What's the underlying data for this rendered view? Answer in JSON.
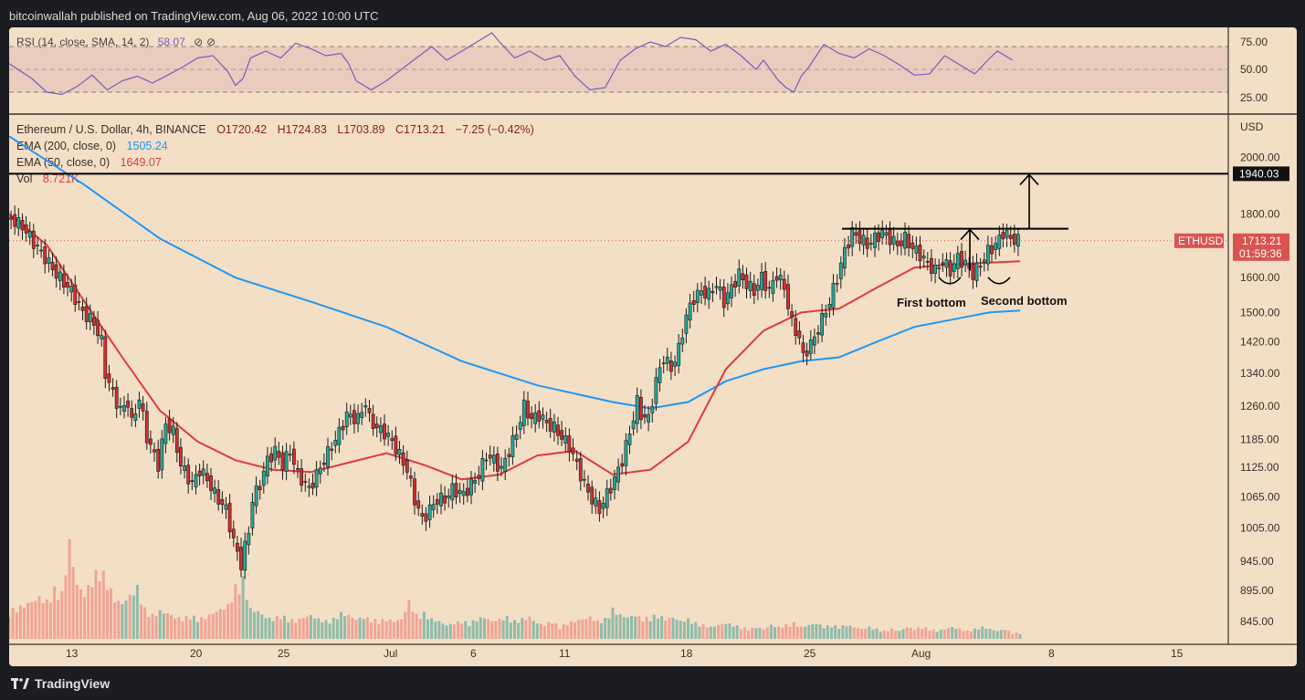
{
  "header": {
    "publisher_line": "bitcoinwallah published on TradingView.com, Aug 06, 2022 10:00 UTC"
  },
  "footer": {
    "brand": "TradingView"
  },
  "chart_data": {
    "type": "candlestick",
    "symbol_line": {
      "title": "Ethereum / U.S. Dollar, 4h, BINANCE",
      "open": "O1720.42",
      "high": "H1724.83",
      "low": "L1703.89",
      "close": "C1713.21",
      "change": "−7.25 (−0.42%)"
    },
    "indicators": {
      "ema200_label": "EMA (200, close, 0)",
      "ema200_value": "1505.24",
      "ema50_label": "EMA (50, close, 0)",
      "ema50_value": "1649.07",
      "vol_label": "Vol",
      "vol_value": "8.721K"
    },
    "rsi": {
      "label": "RSI (14, close, SMA, 14, 2)",
      "value": "58.07",
      "ticks": [
        "75.00",
        "50.00",
        "25.00"
      ],
      "levels": [
        70,
        50,
        30
      ]
    },
    "price_axis": {
      "unit_label": "USD",
      "ticks": [
        "2000.00",
        "1800.00",
        "1600.00",
        "1500.00",
        "1420.00",
        "1340.00",
        "1260.00",
        "1185.00",
        "1125.00",
        "1065.00",
        "1005.00",
        "945.00",
        "895.00",
        "845.00"
      ],
      "scale": "log",
      "range": [
        810,
        2160
      ]
    },
    "time_axis": {
      "ticks": [
        "13",
        "20",
        "25",
        "Jul",
        "6",
        "11",
        "18",
        "25",
        "Aug",
        "8",
        "15"
      ]
    },
    "resistance_label": "1940.03",
    "resistance_value": 1940.03,
    "neckline_value": 1752,
    "current_price_badge": {
      "symbol": "ETHUSD",
      "price": "1713.21",
      "countdown": "01:59:36"
    },
    "current_price": 1713.21,
    "annotations": {
      "first_bottom": "First bottom",
      "second_bottom": "Second bottom"
    },
    "price_path": [
      [
        0,
        1790
      ],
      [
        4,
        1760
      ],
      [
        8,
        1690
      ],
      [
        10,
        1660
      ],
      [
        13,
        1610
      ],
      [
        17,
        1560
      ],
      [
        20,
        1500
      ],
      [
        23,
        1470
      ],
      [
        25,
        1420
      ],
      [
        26,
        1340
      ],
      [
        28,
        1290
      ],
      [
        30,
        1250
      ],
      [
        32,
        1270
      ],
      [
        33,
        1220
      ],
      [
        35,
        1280
      ],
      [
        37,
        1190
      ],
      [
        40,
        1130
      ],
      [
        42,
        1220
      ],
      [
        44,
        1200
      ],
      [
        46,
        1130
      ],
      [
        49,
        1090
      ],
      [
        51,
        1120
      ],
      [
        53,
        1100
      ],
      [
        55,
        1070
      ],
      [
        58,
        1040
      ],
      [
        60,
        980
      ],
      [
        62,
        940
      ],
      [
        64,
        1000
      ],
      [
        65,
        1060
      ],
      [
        67,
        1090
      ],
      [
        69,
        1140
      ],
      [
        71,
        1160
      ],
      [
        73,
        1130
      ],
      [
        75,
        1160
      ],
      [
        77,
        1110
      ],
      [
        80,
        1080
      ],
      [
        82,
        1110
      ],
      [
        84,
        1140
      ],
      [
        86,
        1170
      ],
      [
        88,
        1200
      ],
      [
        90,
        1240
      ],
      [
        93,
        1230
      ],
      [
        95,
        1270
      ],
      [
        96,
        1230
      ],
      [
        98,
        1210
      ],
      [
        100,
        1200
      ],
      [
        102,
        1180
      ],
      [
        104,
        1150
      ],
      [
        106,
        1120
      ],
      [
        108,
        1060
      ],
      [
        110,
        1020
      ],
      [
        112,
        1040
      ],
      [
        114,
        1060
      ],
      [
        116,
        1060
      ],
      [
        118,
        1080
      ],
      [
        121,
        1070
      ],
      [
        123,
        1090
      ],
      [
        125,
        1110
      ],
      [
        127,
        1150
      ],
      [
        129,
        1140
      ],
      [
        131,
        1120
      ],
      [
        133,
        1160
      ],
      [
        135,
        1200
      ],
      [
        137,
        1260
      ],
      [
        139,
        1230
      ],
      [
        141,
        1240
      ],
      [
        143,
        1220
      ],
      [
        145,
        1210
      ],
      [
        147,
        1190
      ],
      [
        149,
        1170
      ],
      [
        151,
        1130
      ],
      [
        153,
        1090
      ],
      [
        155,
        1060
      ],
      [
        157,
        1040
      ],
      [
        159,
        1070
      ],
      [
        161,
        1100
      ],
      [
        163,
        1140
      ],
      [
        165,
        1200
      ],
      [
        167,
        1270
      ],
      [
        168,
        1240
      ],
      [
        170,
        1230
      ],
      [
        172,
        1320
      ],
      [
        174,
        1380
      ],
      [
        176,
        1350
      ],
      [
        178,
        1400
      ],
      [
        180,
        1490
      ],
      [
        182,
        1540
      ],
      [
        184,
        1560
      ],
      [
        186,
        1550
      ],
      [
        188,
        1580
      ],
      [
        190,
        1530
      ],
      [
        192,
        1570
      ],
      [
        194,
        1610
      ],
      [
        196,
        1580
      ],
      [
        198,
        1560
      ],
      [
        200,
        1600
      ],
      [
        202,
        1560
      ],
      [
        204,
        1610
      ],
      [
        206,
        1570
      ],
      [
        207,
        1520
      ],
      [
        208,
        1470
      ],
      [
        210,
        1430
      ],
      [
        211,
        1380
      ],
      [
        212,
        1400
      ],
      [
        214,
        1430
      ],
      [
        216,
        1480
      ],
      [
        218,
        1530
      ],
      [
        220,
        1600
      ],
      [
        222,
        1680
      ],
      [
        224,
        1740
      ],
      [
        226,
        1720
      ],
      [
        228,
        1700
      ],
      [
        230,
        1720
      ],
      [
        232,
        1740
      ],
      [
        234,
        1720
      ],
      [
        236,
        1700
      ],
      [
        238,
        1720
      ],
      [
        240,
        1690
      ],
      [
        242,
        1670
      ],
      [
        244,
        1640
      ],
      [
        246,
        1620
      ],
      [
        248,
        1650
      ],
      [
        250,
        1620
      ],
      [
        252,
        1660
      ],
      [
        254,
        1640
      ],
      [
        256,
        1610
      ],
      [
        258,
        1640
      ],
      [
        260,
        1680
      ],
      [
        262,
        1700
      ],
      [
        264,
        1740
      ],
      [
        266,
        1720
      ],
      [
        268,
        1713
      ]
    ],
    "ema50_path": [
      [
        0,
        1800
      ],
      [
        10,
        1700
      ],
      [
        20,
        1530
      ],
      [
        30,
        1380
      ],
      [
        40,
        1250
      ],
      [
        50,
        1180
      ],
      [
        60,
        1140
      ],
      [
        70,
        1120
      ],
      [
        80,
        1115
      ],
      [
        90,
        1135
      ],
      [
        100,
        1155
      ],
      [
        110,
        1130
      ],
      [
        120,
        1100
      ],
      [
        130,
        1110
      ],
      [
        140,
        1150
      ],
      [
        150,
        1160
      ],
      [
        160,
        1110
      ],
      [
        170,
        1120
      ],
      [
        180,
        1180
      ],
      [
        190,
        1350
      ],
      [
        200,
        1450
      ],
      [
        210,
        1500
      ],
      [
        220,
        1510
      ],
      [
        230,
        1570
      ],
      [
        240,
        1630
      ],
      [
        250,
        1640
      ],
      [
        260,
        1645
      ],
      [
        268,
        1649
      ]
    ],
    "ema200_path": [
      [
        0,
        2080
      ],
      [
        20,
        1900
      ],
      [
        40,
        1720
      ],
      [
        60,
        1600
      ],
      [
        80,
        1530
      ],
      [
        100,
        1460
      ],
      [
        120,
        1370
      ],
      [
        140,
        1310
      ],
      [
        160,
        1270
      ],
      [
        170,
        1255
      ],
      [
        180,
        1270
      ],
      [
        190,
        1320
      ],
      [
        200,
        1350
      ],
      [
        210,
        1370
      ],
      [
        220,
        1380
      ],
      [
        230,
        1420
      ],
      [
        240,
        1460
      ],
      [
        250,
        1480
      ],
      [
        260,
        1500
      ],
      [
        268,
        1505
      ]
    ],
    "rsi_path": [
      [
        0,
        55
      ],
      [
        6,
        42
      ],
      [
        10,
        30
      ],
      [
        14,
        28
      ],
      [
        18,
        35
      ],
      [
        22,
        45
      ],
      [
        26,
        32
      ],
      [
        30,
        40
      ],
      [
        34,
        44
      ],
      [
        38,
        38
      ],
      [
        42,
        45
      ],
      [
        46,
        52
      ],
      [
        50,
        60
      ],
      [
        54,
        62
      ],
      [
        58,
        48
      ],
      [
        60,
        36
      ],
      [
        62,
        42
      ],
      [
        64,
        60
      ],
      [
        68,
        66
      ],
      [
        72,
        60
      ],
      [
        76,
        73
      ],
      [
        80,
        68
      ],
      [
        84,
        62
      ],
      [
        88,
        64
      ],
      [
        90,
        55
      ],
      [
        92,
        40
      ],
      [
        96,
        32
      ],
      [
        100,
        40
      ],
      [
        104,
        50
      ],
      [
        108,
        60
      ],
      [
        112,
        70
      ],
      [
        116,
        58
      ],
      [
        120,
        66
      ],
      [
        124,
        74
      ],
      [
        128,
        82
      ],
      [
        130,
        74
      ],
      [
        134,
        60
      ],
      [
        138,
        66
      ],
      [
        142,
        58
      ],
      [
        146,
        62
      ],
      [
        150,
        44
      ],
      [
        154,
        32
      ],
      [
        158,
        34
      ],
      [
        162,
        58
      ],
      [
        166,
        68
      ],
      [
        170,
        74
      ],
      [
        174,
        70
      ],
      [
        178,
        78
      ],
      [
        182,
        76
      ],
      [
        186,
        66
      ],
      [
        190,
        72
      ],
      [
        194,
        62
      ],
      [
        198,
        50
      ],
      [
        200,
        58
      ],
      [
        204,
        40
      ],
      [
        206,
        34
      ],
      [
        208,
        30
      ],
      [
        210,
        44
      ],
      [
        212,
        52
      ],
      [
        216,
        72
      ],
      [
        220,
        64
      ],
      [
        224,
        60
      ],
      [
        228,
        68
      ],
      [
        232,
        62
      ],
      [
        236,
        54
      ],
      [
        240,
        45
      ],
      [
        244,
        46
      ],
      [
        248,
        62
      ],
      [
        252,
        54
      ],
      [
        256,
        46
      ],
      [
        260,
        60
      ],
      [
        262,
        66
      ],
      [
        266,
        58
      ]
    ],
    "volume_path": [
      [
        0,
        0.28
      ],
      [
        4,
        0.34
      ],
      [
        8,
        0.42
      ],
      [
        10,
        0.38
      ],
      [
        12,
        0.5
      ],
      [
        14,
        0.46
      ],
      [
        16,
        0.98
      ],
      [
        18,
        0.55
      ],
      [
        20,
        0.45
      ],
      [
        22,
        0.6
      ],
      [
        24,
        0.72
      ],
      [
        26,
        0.58
      ],
      [
        28,
        0.4
      ],
      [
        30,
        0.36
      ],
      [
        32,
        0.44
      ],
      [
        34,
        0.52
      ],
      [
        36,
        0.3
      ],
      [
        38,
        0.24
      ],
      [
        40,
        0.28
      ],
      [
        42,
        0.26
      ],
      [
        44,
        0.22
      ],
      [
        46,
        0.2
      ],
      [
        48,
        0.24
      ],
      [
        50,
        0.2
      ],
      [
        52,
        0.22
      ],
      [
        54,
        0.26
      ],
      [
        56,
        0.3
      ],
      [
        58,
        0.34
      ],
      [
        60,
        0.52
      ],
      [
        62,
        0.6
      ],
      [
        64,
        0.3
      ],
      [
        66,
        0.28
      ],
      [
        68,
        0.22
      ],
      [
        70,
        0.2
      ],
      [
        72,
        0.24
      ],
      [
        74,
        0.2
      ],
      [
        76,
        0.18
      ],
      [
        78,
        0.22
      ],
      [
        80,
        0.24
      ],
      [
        82,
        0.2
      ],
      [
        84,
        0.18
      ],
      [
        86,
        0.2
      ],
      [
        88,
        0.26
      ],
      [
        90,
        0.24
      ],
      [
        92,
        0.2
      ],
      [
        94,
        0.22
      ],
      [
        96,
        0.2
      ],
      [
        98,
        0.18
      ],
      [
        100,
        0.2
      ],
      [
        102,
        0.18
      ],
      [
        104,
        0.2
      ],
      [
        106,
        0.38
      ],
      [
        108,
        0.24
      ],
      [
        110,
        0.26
      ],
      [
        112,
        0.2
      ],
      [
        114,
        0.18
      ],
      [
        116,
        0.14
      ],
      [
        118,
        0.16
      ],
      [
        120,
        0.18
      ],
      [
        122,
        0.16
      ],
      [
        124,
        0.2
      ],
      [
        126,
        0.22
      ],
      [
        128,
        0.18
      ],
      [
        130,
        0.2
      ],
      [
        132,
        0.22
      ],
      [
        134,
        0.18
      ],
      [
        136,
        0.2
      ],
      [
        138,
        0.22
      ],
      [
        140,
        0.16
      ],
      [
        142,
        0.14
      ],
      [
        144,
        0.18
      ],
      [
        146,
        0.12
      ],
      [
        148,
        0.16
      ],
      [
        150,
        0.18
      ],
      [
        152,
        0.2
      ],
      [
        154,
        0.22
      ],
      [
        156,
        0.18
      ],
      [
        158,
        0.2
      ],
      [
        160,
        0.3
      ],
      [
        162,
        0.24
      ],
      [
        164,
        0.22
      ],
      [
        166,
        0.24
      ],
      [
        168,
        0.2
      ],
      [
        170,
        0.22
      ],
      [
        172,
        0.24
      ],
      [
        174,
        0.2
      ],
      [
        176,
        0.22
      ],
      [
        178,
        0.18
      ],
      [
        180,
        0.2
      ],
      [
        182,
        0.16
      ],
      [
        184,
        0.14
      ],
      [
        186,
        0.12
      ],
      [
        188,
        0.14
      ],
      [
        190,
        0.16
      ],
      [
        192,
        0.14
      ],
      [
        194,
        0.12
      ],
      [
        196,
        0.1
      ],
      [
        198,
        0.12
      ],
      [
        200,
        0.1
      ],
      [
        202,
        0.14
      ],
      [
        204,
        0.12
      ],
      [
        206,
        0.14
      ],
      [
        208,
        0.16
      ],
      [
        210,
        0.12
      ],
      [
        212,
        0.14
      ],
      [
        214,
        0.16
      ],
      [
        216,
        0.12
      ],
      [
        218,
        0.14
      ],
      [
        220,
        0.12
      ],
      [
        222,
        0.14
      ],
      [
        224,
        0.12
      ],
      [
        226,
        0.1
      ],
      [
        228,
        0.12
      ],
      [
        230,
        0.1
      ],
      [
        232,
        0.08
      ],
      [
        234,
        0.1
      ],
      [
        236,
        0.08
      ],
      [
        238,
        0.12
      ],
      [
        240,
        0.1
      ],
      [
        242,
        0.12
      ],
      [
        244,
        0.1
      ],
      [
        246,
        0.08
      ],
      [
        248,
        0.1
      ],
      [
        250,
        0.12
      ],
      [
        252,
        0.1
      ],
      [
        254,
        0.08
      ],
      [
        256,
        0.1
      ],
      [
        258,
        0.12
      ],
      [
        260,
        0.1
      ],
      [
        262,
        0.08
      ],
      [
        264,
        0.1
      ],
      [
        266,
        0.06
      ]
    ]
  }
}
